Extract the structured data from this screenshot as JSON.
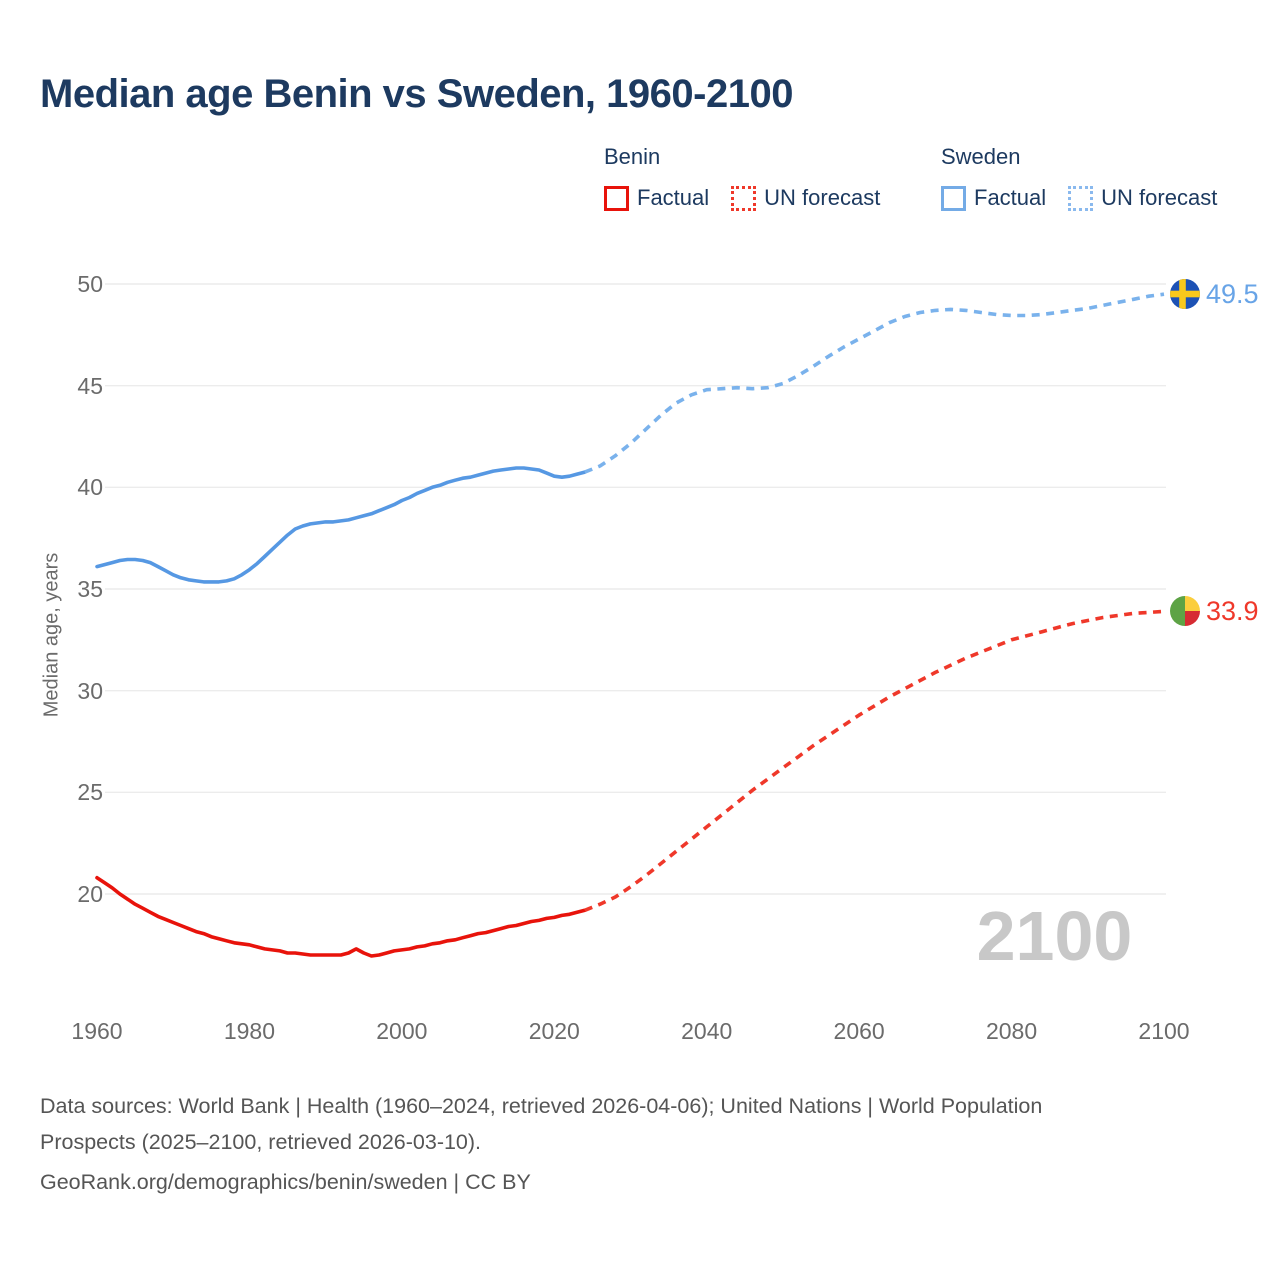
{
  "page": {
    "title": "Median age Benin vs Sweden, 1960-2100"
  },
  "legend": {
    "groups": [
      {
        "title": "Benin",
        "color_solid": "#e8130b",
        "color_dashed": "#ef382a",
        "items": [
          {
            "label": "Factual"
          },
          {
            "label": "UN forecast"
          }
        ]
      },
      {
        "title": "Sweden",
        "color_solid": "#5b9ce0",
        "color_dashed": "#8ab9ee",
        "items": [
          {
            "label": "Factual"
          },
          {
            "label": "UN forecast"
          }
        ]
      }
    ]
  },
  "chart_data": {
    "type": "line",
    "title": "Median age Benin vs Sweden, 1960-2100",
    "xlabel": "",
    "ylabel": "Median age, years",
    "xlim": [
      1960,
      2100
    ],
    "ylim": [
      16.5,
      50
    ],
    "x_ticks": [
      1960,
      1980,
      2000,
      2020,
      2040,
      2060,
      2080,
      2100
    ],
    "y_ticks": [
      20,
      25,
      30,
      35,
      40,
      45,
      50
    ],
    "grid": "horizontal",
    "legend_position": "top",
    "watermark": "2100",
    "series": [
      {
        "key": "benin-factual",
        "name": "Benin Factual",
        "color": "#e8130b",
        "style": "solid",
        "points": [
          [
            1960,
            20.8
          ],
          [
            1961,
            20.55
          ],
          [
            1962,
            20.3
          ],
          [
            1963,
            20.0
          ],
          [
            1964,
            19.75
          ],
          [
            1965,
            19.5
          ],
          [
            1966,
            19.3
          ],
          [
            1967,
            19.1
          ],
          [
            1968,
            18.9
          ],
          [
            1969,
            18.75
          ],
          [
            1970,
            18.6
          ],
          [
            1971,
            18.45
          ],
          [
            1972,
            18.3
          ],
          [
            1973,
            18.15
          ],
          [
            1974,
            18.05
          ],
          [
            1975,
            17.9
          ],
          [
            1976,
            17.8
          ],
          [
            1977,
            17.7
          ],
          [
            1978,
            17.6
          ],
          [
            1979,
            17.55
          ],
          [
            1980,
            17.5
          ],
          [
            1981,
            17.4
          ],
          [
            1982,
            17.3
          ],
          [
            1983,
            17.25
          ],
          [
            1984,
            17.2
          ],
          [
            1985,
            17.1
          ],
          [
            1986,
            17.1
          ],
          [
            1987,
            17.05
          ],
          [
            1988,
            17.0
          ],
          [
            1989,
            17.0
          ],
          [
            1990,
            17.0
          ],
          [
            1991,
            17.0
          ],
          [
            1992,
            17.0
          ],
          [
            1993,
            17.1
          ],
          [
            1994,
            17.3
          ],
          [
            1995,
            17.1
          ],
          [
            1996,
            16.95
          ],
          [
            1997,
            17.0
          ],
          [
            1998,
            17.1
          ],
          [
            1999,
            17.2
          ],
          [
            2000,
            17.25
          ],
          [
            2001,
            17.3
          ],
          [
            2002,
            17.4
          ],
          [
            2003,
            17.45
          ],
          [
            2004,
            17.55
          ],
          [
            2005,
            17.6
          ],
          [
            2006,
            17.7
          ],
          [
            2007,
            17.75
          ],
          [
            2008,
            17.85
          ],
          [
            2009,
            17.95
          ],
          [
            2010,
            18.05
          ],
          [
            2011,
            18.1
          ],
          [
            2012,
            18.2
          ],
          [
            2013,
            18.3
          ],
          [
            2014,
            18.4
          ],
          [
            2015,
            18.45
          ],
          [
            2016,
            18.55
          ],
          [
            2017,
            18.65
          ],
          [
            2018,
            18.7
          ],
          [
            2019,
            18.8
          ],
          [
            2020,
            18.85
          ],
          [
            2021,
            18.95
          ],
          [
            2022,
            19.0
          ],
          [
            2023,
            19.1
          ],
          [
            2024,
            19.2
          ]
        ]
      },
      {
        "key": "benin-forecast",
        "name": "Benin UN forecast",
        "color": "#ef382a",
        "style": "dashed",
        "points": [
          [
            2024,
            19.2
          ],
          [
            2026,
            19.5
          ],
          [
            2028,
            19.85
          ],
          [
            2030,
            20.35
          ],
          [
            2032,
            20.9
          ],
          [
            2034,
            21.5
          ],
          [
            2036,
            22.1
          ],
          [
            2038,
            22.7
          ],
          [
            2040,
            23.3
          ],
          [
            2042,
            23.9
          ],
          [
            2044,
            24.5
          ],
          [
            2046,
            25.1
          ],
          [
            2048,
            25.65
          ],
          [
            2050,
            26.2
          ],
          [
            2052,
            26.75
          ],
          [
            2054,
            27.3
          ],
          [
            2056,
            27.8
          ],
          [
            2058,
            28.3
          ],
          [
            2060,
            28.8
          ],
          [
            2062,
            29.25
          ],
          [
            2064,
            29.7
          ],
          [
            2066,
            30.1
          ],
          [
            2068,
            30.5
          ],
          [
            2070,
            30.9
          ],
          [
            2072,
            31.25
          ],
          [
            2074,
            31.6
          ],
          [
            2076,
            31.9
          ],
          [
            2078,
            32.2
          ],
          [
            2080,
            32.5
          ],
          [
            2082,
            32.7
          ],
          [
            2084,
            32.9
          ],
          [
            2086,
            33.1
          ],
          [
            2088,
            33.3
          ],
          [
            2090,
            33.45
          ],
          [
            2092,
            33.6
          ],
          [
            2094,
            33.7
          ],
          [
            2096,
            33.8
          ],
          [
            2098,
            33.85
          ],
          [
            2100,
            33.9
          ]
        ]
      },
      {
        "key": "sweden-factual",
        "name": "Sweden Factual",
        "color": "#5698e3",
        "style": "solid",
        "points": [
          [
            1960,
            36.1
          ],
          [
            1961,
            36.2
          ],
          [
            1962,
            36.3
          ],
          [
            1963,
            36.4
          ],
          [
            1964,
            36.45
          ],
          [
            1965,
            36.45
          ],
          [
            1966,
            36.4
          ],
          [
            1967,
            36.3
          ],
          [
            1968,
            36.1
          ],
          [
            1969,
            35.9
          ],
          [
            1970,
            35.7
          ],
          [
            1971,
            35.55
          ],
          [
            1972,
            35.45
          ],
          [
            1973,
            35.4
          ],
          [
            1974,
            35.35
          ],
          [
            1975,
            35.35
          ],
          [
            1976,
            35.35
          ],
          [
            1977,
            35.4
          ],
          [
            1978,
            35.5
          ],
          [
            1979,
            35.7
          ],
          [
            1980,
            35.95
          ],
          [
            1981,
            36.25
          ],
          [
            1982,
            36.6
          ],
          [
            1983,
            36.95
          ],
          [
            1984,
            37.3
          ],
          [
            1985,
            37.65
          ],
          [
            1986,
            37.95
          ],
          [
            1987,
            38.1
          ],
          [
            1988,
            38.2
          ],
          [
            1989,
            38.25
          ],
          [
            1990,
            38.3
          ],
          [
            1991,
            38.3
          ],
          [
            1992,
            38.35
          ],
          [
            1993,
            38.4
          ],
          [
            1994,
            38.5
          ],
          [
            1995,
            38.6
          ],
          [
            1996,
            38.7
          ],
          [
            1997,
            38.85
          ],
          [
            1998,
            39.0
          ],
          [
            1999,
            39.15
          ],
          [
            2000,
            39.35
          ],
          [
            2001,
            39.5
          ],
          [
            2002,
            39.7
          ],
          [
            2003,
            39.85
          ],
          [
            2004,
            40.0
          ],
          [
            2005,
            40.1
          ],
          [
            2006,
            40.25
          ],
          [
            2007,
            40.35
          ],
          [
            2008,
            40.45
          ],
          [
            2009,
            40.5
          ],
          [
            2010,
            40.6
          ],
          [
            2011,
            40.7
          ],
          [
            2012,
            40.8
          ],
          [
            2013,
            40.85
          ],
          [
            2014,
            40.9
          ],
          [
            2015,
            40.95
          ],
          [
            2016,
            40.95
          ],
          [
            2017,
            40.9
          ],
          [
            2018,
            40.85
          ],
          [
            2019,
            40.7
          ],
          [
            2020,
            40.55
          ],
          [
            2021,
            40.5
          ],
          [
            2022,
            40.55
          ],
          [
            2023,
            40.65
          ],
          [
            2024,
            40.75
          ]
        ]
      },
      {
        "key": "sweden-forecast",
        "name": "Sweden UN forecast",
        "color": "#7ab2ec",
        "style": "dashed",
        "points": [
          [
            2024,
            40.75
          ],
          [
            2026,
            41.05
          ],
          [
            2028,
            41.55
          ],
          [
            2030,
            42.15
          ],
          [
            2032,
            42.85
          ],
          [
            2034,
            43.55
          ],
          [
            2036,
            44.15
          ],
          [
            2038,
            44.55
          ],
          [
            2040,
            44.8
          ],
          [
            2042,
            44.85
          ],
          [
            2044,
            44.9
          ],
          [
            2046,
            44.85
          ],
          [
            2048,
            44.9
          ],
          [
            2050,
            45.1
          ],
          [
            2052,
            45.5
          ],
          [
            2054,
            45.95
          ],
          [
            2056,
            46.45
          ],
          [
            2058,
            46.9
          ],
          [
            2060,
            47.3
          ],
          [
            2062,
            47.7
          ],
          [
            2064,
            48.1
          ],
          [
            2066,
            48.4
          ],
          [
            2068,
            48.6
          ],
          [
            2070,
            48.7
          ],
          [
            2072,
            48.75
          ],
          [
            2074,
            48.7
          ],
          [
            2076,
            48.6
          ],
          [
            2078,
            48.5
          ],
          [
            2080,
            48.45
          ],
          [
            2082,
            48.45
          ],
          [
            2084,
            48.5
          ],
          [
            2086,
            48.6
          ],
          [
            2088,
            48.7
          ],
          [
            2090,
            48.8
          ],
          [
            2092,
            48.95
          ],
          [
            2094,
            49.1
          ],
          [
            2096,
            49.25
          ],
          [
            2098,
            49.4
          ],
          [
            2100,
            49.5
          ]
        ]
      }
    ],
    "end_labels": [
      {
        "series": "Sweden",
        "value": "49.5",
        "color": "#68a4e7",
        "icon": "sweden-flag-icon"
      },
      {
        "series": "Benin",
        "value": "33.9",
        "color": "#ef382a",
        "icon": "benin-flag-icon"
      }
    ]
  },
  "footer": {
    "sources": "Data sources: World Bank | Health (1960–2024, retrieved 2026-04-06); United Nations | World Population Prospects (2025–2100, retrieved 2026-03-10).",
    "attribution": "GeoRank.org/demographics/benin/sweden | CC BY"
  }
}
